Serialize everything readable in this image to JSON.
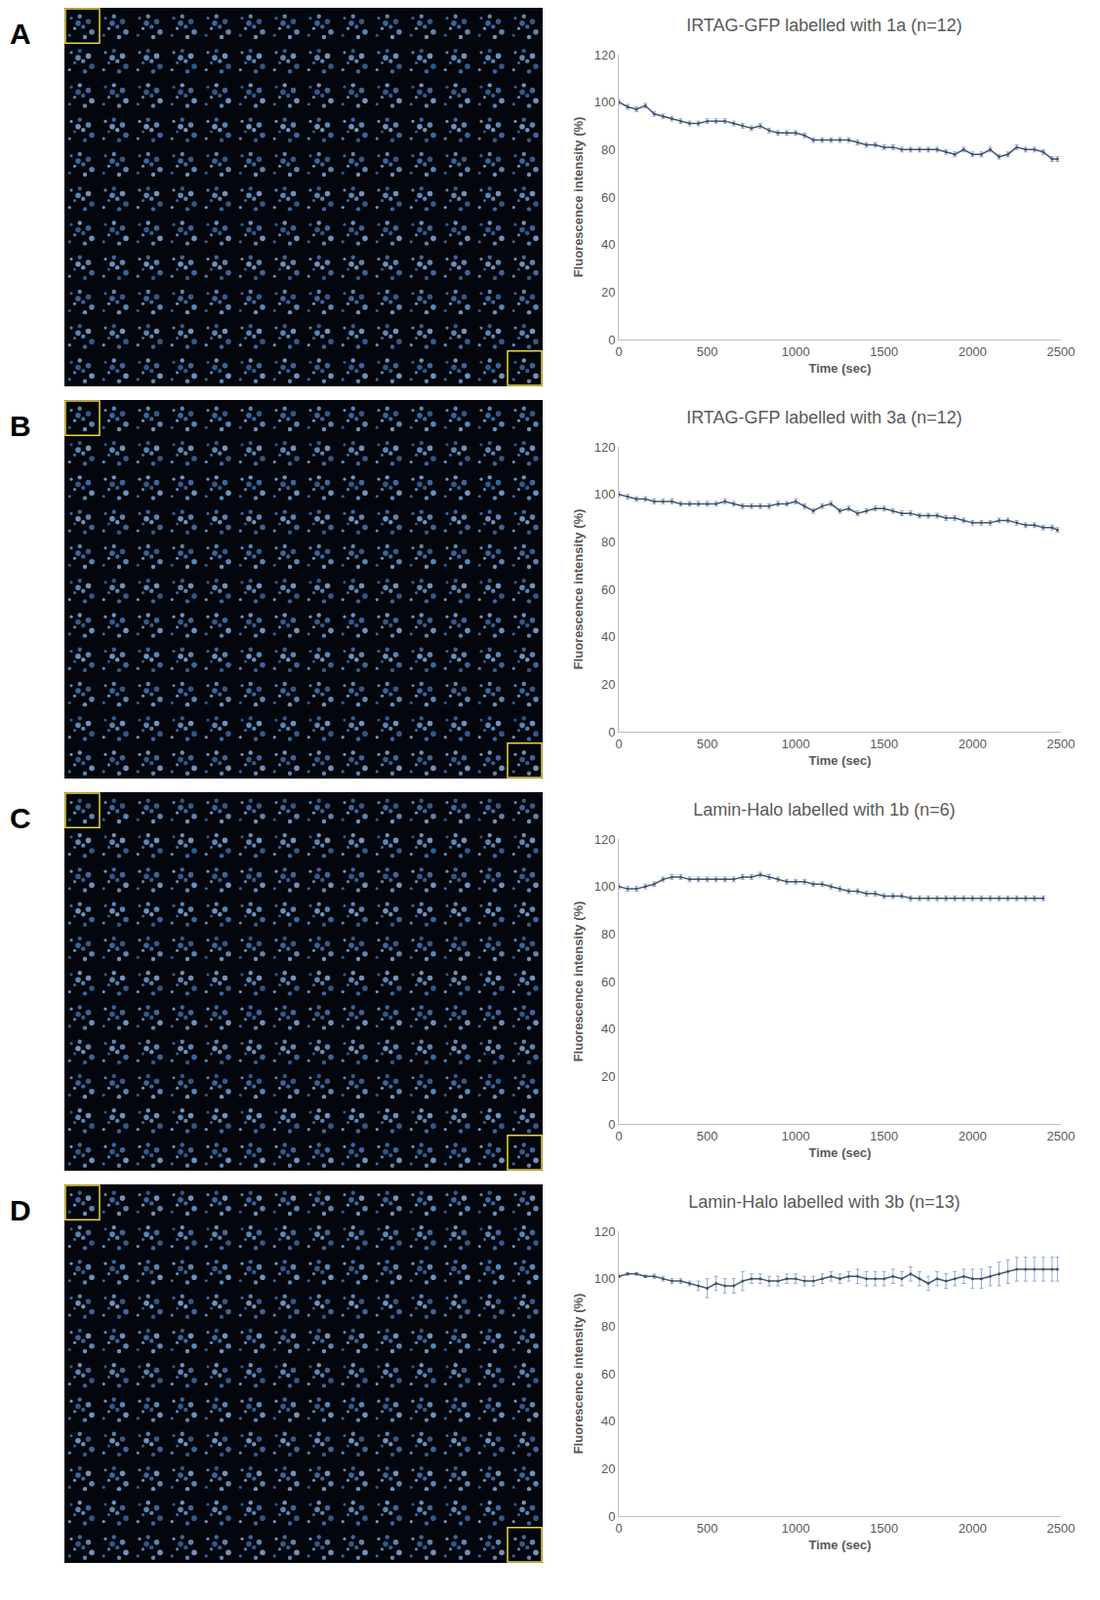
{
  "chart_data": [
    {
      "type": "line",
      "panel": "A",
      "title": "IRTAG-GFP labelled with 1a (n=12)",
      "x_label": "Time (sec)",
      "y_label": "Fluorescence intensity (%)",
      "xlim": [
        0,
        2500
      ],
      "xticks": [
        0,
        500,
        1000,
        1500,
        2000,
        2500
      ],
      "ylim": [
        0,
        120
      ],
      "yticks": [
        0,
        20,
        40,
        60,
        80,
        100,
        120
      ],
      "grid": false,
      "color": "#44546a",
      "marker": "circle",
      "x": [
        0,
        50,
        100,
        150,
        200,
        250,
        300,
        350,
        400,
        450,
        500,
        550,
        600,
        650,
        700,
        750,
        800,
        850,
        900,
        950,
        1000,
        1050,
        1100,
        1150,
        1200,
        1250,
        1300,
        1350,
        1400,
        1450,
        1500,
        1550,
        1600,
        1650,
        1700,
        1750,
        1800,
        1850,
        1900,
        1950,
        2000,
        2050,
        2100,
        2150,
        2200,
        2250,
        2300,
        2350,
        2400,
        2450,
        2480
      ],
      "values": [
        100,
        98,
        97,
        98.5,
        95,
        94,
        93,
        92,
        91,
        91,
        92,
        92,
        92,
        91,
        90,
        89,
        90,
        88,
        87,
        87,
        87,
        86,
        84,
        84,
        84,
        84,
        84,
        83,
        82,
        82,
        81,
        81,
        80,
        80,
        80,
        80,
        80,
        79,
        78,
        80,
        78,
        78,
        80,
        77,
        78,
        81,
        80,
        80,
        79,
        76,
        76
      ],
      "error": [
        1,
        1,
        1,
        1,
        1,
        1,
        1,
        1,
        1,
        1,
        1,
        1,
        1,
        1,
        1,
        1,
        1,
        1,
        1,
        1,
        1,
        1,
        1,
        1,
        1,
        1,
        1,
        1,
        1,
        1,
        1,
        1,
        1,
        1,
        1,
        1,
        1,
        1,
        1,
        1,
        1,
        1,
        1,
        1,
        1,
        1,
        1,
        1,
        1,
        1,
        1
      ]
    },
    {
      "type": "line",
      "panel": "B",
      "title": "IRTAG-GFP labelled with 3a (n=12)",
      "x_label": "Time (sec)",
      "y_label": "Fluorescence intensity (%)",
      "xlim": [
        0,
        2500
      ],
      "xticks": [
        0,
        500,
        1000,
        1500,
        2000,
        2500
      ],
      "ylim": [
        0,
        120
      ],
      "yticks": [
        0,
        20,
        40,
        60,
        80,
        100,
        120
      ],
      "grid": false,
      "color": "#44546a",
      "marker": "circle",
      "x": [
        0,
        50,
        100,
        150,
        200,
        250,
        300,
        350,
        400,
        450,
        500,
        550,
        600,
        650,
        700,
        750,
        800,
        850,
        900,
        950,
        1000,
        1050,
        1100,
        1150,
        1200,
        1250,
        1300,
        1350,
        1400,
        1450,
        1500,
        1550,
        1600,
        1650,
        1700,
        1750,
        1800,
        1850,
        1900,
        1950,
        2000,
        2050,
        2100,
        2150,
        2200,
        2250,
        2300,
        2350,
        2400,
        2450,
        2480
      ],
      "values": [
        100,
        99,
        98,
        98,
        97,
        97,
        97,
        96,
        96,
        96,
        96,
        96,
        97,
        96,
        95,
        95,
        95,
        95,
        96,
        96,
        97,
        95,
        93,
        95,
        96,
        93,
        94,
        92,
        93,
        94,
        94,
        93,
        92,
        92,
        91,
        91,
        91,
        90,
        90,
        89,
        88,
        88,
        88,
        89,
        89,
        88,
        87,
        87,
        86,
        86,
        85
      ],
      "error": [
        1,
        1,
        1,
        1,
        1,
        1,
        1,
        1,
        1,
        1,
        1,
        1,
        1,
        1,
        1,
        1,
        1,
        1,
        1,
        1,
        1,
        1,
        1,
        1,
        1,
        1,
        1,
        1,
        1,
        1,
        1,
        1,
        1,
        1,
        1,
        1,
        1,
        1,
        1,
        1,
        1,
        1,
        1,
        1,
        1,
        1,
        1,
        1,
        1,
        1,
        1
      ]
    },
    {
      "type": "line",
      "panel": "C",
      "title": "Lamin-Halo labelled with 1b (n=6)",
      "x_label": "Time (sec)",
      "y_label": "Fluorescence intensity (%)",
      "xlim": [
        0,
        2500
      ],
      "xticks": [
        0,
        500,
        1000,
        1500,
        2000,
        2500
      ],
      "ylim": [
        0,
        120
      ],
      "yticks": [
        0,
        20,
        40,
        60,
        80,
        100,
        120
      ],
      "grid": false,
      "color": "#44546a",
      "marker": "circle",
      "x": [
        0,
        50,
        100,
        150,
        200,
        250,
        300,
        350,
        400,
        450,
        500,
        550,
        600,
        650,
        700,
        750,
        800,
        850,
        900,
        950,
        1000,
        1050,
        1100,
        1150,
        1200,
        1250,
        1300,
        1350,
        1400,
        1450,
        1500,
        1550,
        1600,
        1650,
        1700,
        1750,
        1800,
        1850,
        1900,
        1950,
        2000,
        2050,
        2100,
        2150,
        2200,
        2250,
        2300,
        2350,
        2400
      ],
      "values": [
        100,
        99,
        99,
        100,
        101,
        103,
        104,
        104,
        103,
        103,
        103,
        103,
        103,
        103,
        104,
        104,
        105,
        104,
        103,
        102,
        102,
        102,
        101,
        101,
        100,
        99,
        98,
        98,
        97,
        97,
        96,
        96,
        96,
        95,
        95,
        95,
        95,
        95,
        95,
        95,
        95,
        95,
        95,
        95,
        95,
        95,
        95,
        95,
        95
      ],
      "error": [
        1,
        1,
        1,
        1,
        1,
        1,
        1,
        1,
        1,
        1,
        1,
        1,
        1,
        1,
        1,
        1,
        1,
        1,
        1,
        1,
        1,
        1,
        1,
        1,
        1,
        1,
        1,
        1,
        1,
        1,
        1,
        1,
        1,
        1,
        1,
        1,
        1,
        1,
        1,
        1,
        1,
        1,
        1,
        1,
        1,
        1,
        1,
        1,
        1
      ]
    },
    {
      "type": "line",
      "panel": "D",
      "title": "Lamin-Halo labelled with 3b (n=13)",
      "x_label": "Time (sec)",
      "y_label": "Fluorescence intensity (%)",
      "xlim": [
        0,
        2500
      ],
      "xticks": [
        0,
        500,
        1000,
        1500,
        2000,
        2500
      ],
      "ylim": [
        0,
        120
      ],
      "yticks": [
        0,
        20,
        40,
        60,
        80,
        100,
        120
      ],
      "grid": false,
      "color": "#44546a",
      "marker": "circle",
      "x": [
        0,
        50,
        100,
        150,
        200,
        250,
        300,
        350,
        400,
        450,
        500,
        550,
        600,
        650,
        700,
        750,
        800,
        850,
        900,
        950,
        1000,
        1050,
        1100,
        1150,
        1200,
        1250,
        1300,
        1350,
        1400,
        1450,
        1500,
        1550,
        1600,
        1650,
        1700,
        1750,
        1800,
        1850,
        1900,
        1950,
        2000,
        2050,
        2100,
        2150,
        2200,
        2250,
        2300,
        2350,
        2400,
        2450,
        2480
      ],
      "values": [
        101,
        102,
        102,
        101,
        101,
        100,
        99,
        99,
        98,
        97,
        96,
        98,
        97,
        97,
        99,
        100,
        100,
        99,
        99,
        100,
        100,
        99,
        99,
        100,
        101,
        100,
        101,
        101,
        100,
        100,
        100,
        101,
        100,
        102,
        100,
        98,
        100,
        99,
        100,
        101,
        100,
        100,
        101,
        102,
        103,
        104,
        104,
        104,
        104,
        104,
        104
      ],
      "error": [
        0.5,
        0.5,
        0.5,
        0.5,
        1,
        1,
        1,
        1,
        1,
        2,
        4,
        3,
        3,
        3,
        4,
        2,
        2,
        2,
        2,
        2,
        2,
        2,
        2,
        2,
        2,
        2,
        2,
        3,
        3,
        3,
        3,
        3,
        3,
        3,
        3,
        3,
        3,
        3,
        3,
        3,
        4,
        4,
        4,
        5,
        5,
        5,
        5,
        5,
        5,
        5,
        5
      ]
    }
  ]
}
